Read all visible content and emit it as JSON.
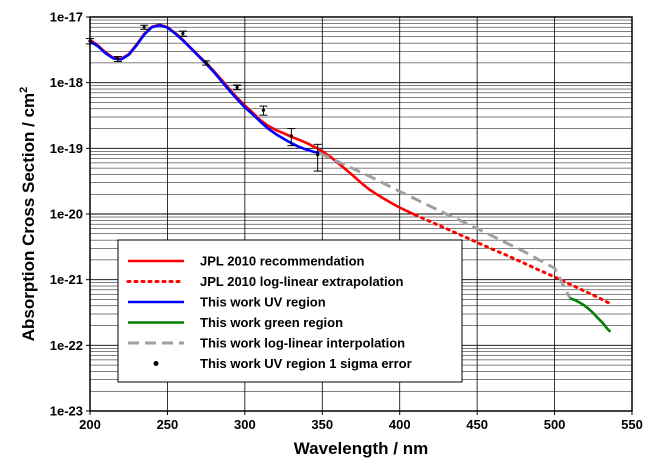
{
  "chart_data": {
    "type": "line",
    "title": "",
    "xlabel": "Wavelength / nm",
    "ylabel": "Absorption Cross Section / cm",
    "ylabel_superscript": "2",
    "xlim": [
      200,
      550
    ],
    "ylim": [
      1e-23,
      1e-17
    ],
    "y_scale": "log",
    "x_ticks": [
      200,
      250,
      300,
      350,
      400,
      450,
      500,
      550
    ],
    "x_tick_labels": [
      "200",
      "250",
      "300",
      "350",
      "400",
      "450",
      "500",
      "550"
    ],
    "y_ticks": [
      1e-23,
      1e-22,
      1e-21,
      1e-20,
      1e-19,
      1e-18,
      1e-17
    ],
    "y_tick_labels": [
      "1e-23",
      "1e-22",
      "1e-21",
      "1e-20",
      "1e-19",
      "1e-18",
      "1e-17"
    ],
    "grid": true,
    "legend_position": "bottom-left",
    "series": [
      {
        "name": "JPL 2010 recommendation",
        "color": "#ff0000",
        "style": "solid",
        "x": [
          200,
          205,
          210,
          215,
          220,
          225,
          230,
          235,
          240,
          245,
          250,
          255,
          260,
          265,
          270,
          275,
          280,
          285,
          290,
          295,
          300,
          305,
          310,
          315,
          320,
          325,
          330,
          335,
          340,
          345,
          350,
          355,
          360,
          365,
          370,
          375,
          380,
          385,
          390,
          395,
          400,
          405,
          410
        ],
        "y": [
          4.5e-18,
          3.7e-18,
          2.9e-18,
          2.4e-18,
          2.3e-18,
          2.7e-18,
          3.8e-18,
          5.5e-18,
          7.1e-18,
          7.6e-18,
          7e-18,
          5.7e-18,
          4.5e-18,
          3.4e-18,
          2.6e-18,
          2e-18,
          1.5e-18,
          1.1e-18,
          8e-19,
          5.9e-19,
          4.5e-19,
          3.5e-19,
          2.7e-19,
          2.2e-19,
          1.9e-19,
          1.7e-19,
          1.5e-19,
          1.35e-19,
          1.2e-19,
          1.05e-19,
          9e-20,
          7.5e-20,
          6e-20,
          4.8e-20,
          3.8e-20,
          3e-20,
          2.4e-20,
          2e-20,
          1.7e-20,
          1.45e-20,
          1.25e-20,
          1.1e-20,
          9.7e-21
        ]
      },
      {
        "name": "JPL 2010 log-linear extrapolation",
        "color": "#ff0000",
        "style": "dotted",
        "x": [
          410,
          420,
          430,
          440,
          450,
          460,
          470,
          480,
          490,
          500,
          510,
          520,
          530,
          536
        ],
        "y": [
          9.7e-21,
          7.6e-21,
          6e-21,
          4.7e-21,
          3.7e-21,
          2.9e-21,
          2.3e-21,
          1.8e-21,
          1.4e-21,
          1.1e-21,
          8.5e-22,
          6.6e-22,
          5.1e-22,
          4.3e-22
        ]
      },
      {
        "name": "This work UV region",
        "color": "#0000ff",
        "style": "solid",
        "x": [
          200,
          205,
          210,
          215,
          220,
          225,
          230,
          235,
          240,
          245,
          250,
          255,
          260,
          265,
          270,
          275,
          280,
          285,
          290,
          295,
          300,
          305,
          310,
          315,
          320,
          325,
          330,
          335,
          340,
          345,
          348
        ],
        "y": [
          4.3e-18,
          3.6e-18,
          2.8e-18,
          2.35e-18,
          2.25e-18,
          2.65e-18,
          3.7e-18,
          5.4e-18,
          7e-18,
          7.5e-18,
          6.9e-18,
          5.6e-18,
          4.4e-18,
          3.35e-18,
          2.55e-18,
          1.95e-18,
          1.45e-18,
          1.05e-18,
          7.6e-19,
          5.6e-19,
          4.2e-19,
          3.3e-19,
          2.55e-19,
          2e-19,
          1.65e-19,
          1.4e-19,
          1.2e-19,
          1.05e-19,
          9.5e-20,
          8.8e-20,
          8.5e-20
        ]
      },
      {
        "name": "This work green region",
        "color": "#008000",
        "style": "solid",
        "x": [
          510,
          513,
          516,
          519,
          522,
          525,
          528,
          531,
          534,
          536
        ],
        "y": [
          5.2e-22,
          4.9e-22,
          4.5e-22,
          4.1e-22,
          3.6e-22,
          3.1e-22,
          2.6e-22,
          2.2e-22,
          1.8e-22,
          1.6e-22
        ]
      },
      {
        "name": "This work log-linear interpolation",
        "color": "#a0a0a0",
        "style": "dashed",
        "x": [
          348,
          360,
          370,
          380,
          390,
          400,
          410,
          420,
          430,
          440,
          450,
          460,
          470,
          480,
          490,
          500,
          510
        ],
        "y": [
          8.5e-20,
          6.3e-20,
          4.9e-20,
          3.8e-20,
          2.9e-20,
          2.2e-20,
          1.7e-20,
          1.3e-20,
          1e-20,
          7.8e-21,
          6e-21,
          4.6e-21,
          3.5e-21,
          2.7e-21,
          2e-21,
          1.5e-21,
          5.2e-22
        ]
      },
      {
        "name": "This work UV region 1 sigma error",
        "color": "#000000",
        "style": "errorbar",
        "x": [
          200,
          218,
          235,
          260,
          275,
          295,
          312,
          330,
          347
        ],
        "y": [
          4.3e-18,
          2.3e-18,
          7e-18,
          5.6e-18,
          2e-18,
          8.5e-19,
          3.8e-19,
          1.55e-19,
          8e-20
        ],
        "y_low": [
          3.9e-18,
          2.1e-18,
          6.5e-18,
          5.1e-18,
          1.85e-18,
          7.8e-19,
          3.2e-19,
          1.1e-19,
          4.5e-20
        ],
        "y_high": [
          4.7e-18,
          2.5e-18,
          7.5e-18,
          6.1e-18,
          2.15e-18,
          9.2e-19,
          4.4e-19,
          2e-19,
          1.15e-19
        ]
      }
    ]
  }
}
